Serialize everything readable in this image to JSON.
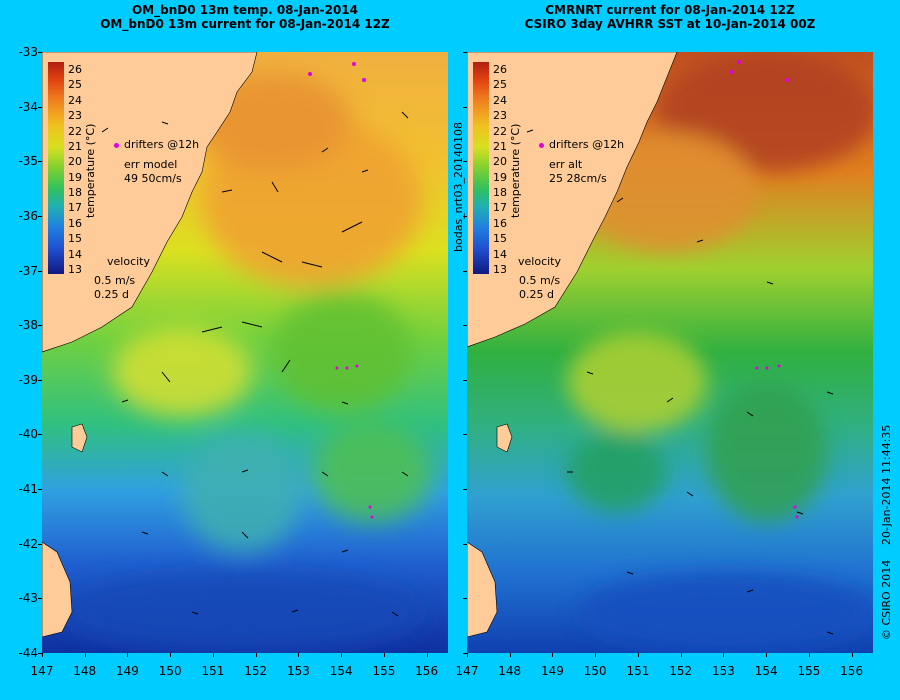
{
  "left_panel": {
    "title_line1": "OM_bnD0 13m temp. 08-Jan-2014",
    "title_line2": "OM_bnD0 13m current for 08-Jan-2014 12Z",
    "legend_drifters": "drifters @12h",
    "err_label": "err model",
    "err_value": "49 50cm/s",
    "velocity_label": "velocity",
    "velocity_speed": "0.5 m/s",
    "velocity_time": "0.25 d"
  },
  "right_panel": {
    "title_line1": "CMRNRT current for 08-Jan-2014 12Z",
    "title_line2": "CSIRO 3day AVHRR SST at 10-Jan-2014 00Z",
    "legend_drifters": "drifters @12h",
    "err_label": "err alt",
    "err_value": "25 28cm/s",
    "velocity_label": "velocity",
    "velocity_speed": "0.5 m/s",
    "velocity_time": "0.25 d"
  },
  "colorbar": {
    "title": "temperature (°C)",
    "labels": [
      "26",
      "25",
      "24",
      "23",
      "22",
      "21",
      "20",
      "19",
      "18",
      "17",
      "16",
      "15",
      "14",
      "13"
    ]
  },
  "y_axis": {
    "labels": [
      "-33",
      "-34",
      "-35",
      "-36",
      "-37",
      "-38",
      "-39",
      "-40",
      "-41",
      "-42",
      "-43",
      "-44"
    ]
  },
  "x_axis": {
    "labels": [
      "147",
      "148",
      "149",
      "150",
      "151",
      "152",
      "153",
      "154",
      "155",
      "156"
    ]
  },
  "side_text_left": "bodas_nrt03_20140108",
  "side_text_right": "20-Jan-2014 11:44:35",
  "copyright": "© CSIRO 2014",
  "colors": {
    "background": "#00ccff",
    "land": "#ffcc99",
    "drifter": "#e000e0"
  }
}
